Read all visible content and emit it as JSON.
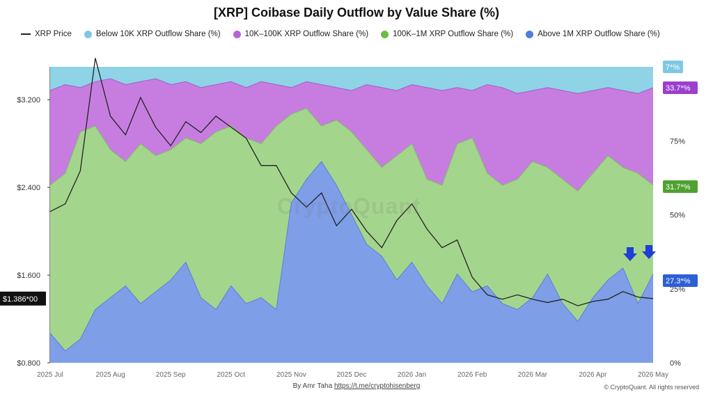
{
  "title": "[XRP] Coibase Daily Outflow by Value Share (%)",
  "legend": [
    {
      "label": "XRP Price",
      "kind": "line",
      "color": "#222222"
    },
    {
      "label": "Below 10K XRP Outflow Share (%)",
      "kind": "dot",
      "color": "#7ec8e3"
    },
    {
      "label": "10K–100K XRP Outflow Share (%)",
      "kind": "dot",
      "color": "#b565d6"
    },
    {
      "label": "100K–1M XRP Outflow Share (%)",
      "kind": "dot",
      "color": "#6bbb4a"
    },
    {
      "label": "Above 1M XRP Outflow Share (%)",
      "kind": "dot",
      "color": "#4f7ee0"
    }
  ],
  "watermark": "CryptoQuant",
  "credit": {
    "prefix": "By Amr Taha",
    "link": "https://t.me/cryptohisenberg"
  },
  "copyright": "© CryptoQuant. All rights reserved",
  "price_tag": "$1.386*00",
  "colors": {
    "below10k": "#8fd3e6",
    "k10_100": "#c77ddf",
    "k100_1m": "#a4d58d",
    "above1m": "#7f9ee8",
    "price": "#222222",
    "arrow": "#1f3fd6"
  },
  "chart_data": {
    "type": "area",
    "stacked_percent": true,
    "x_ticks": [
      "2025 Jul",
      "2025 Aug",
      "2025 Sep",
      "2025 Oct",
      "2025 Nov",
      "2025 Dec",
      "2026 Jan",
      "2026 Feb",
      "2026 Mar",
      "2026 Apr",
      "2026 May"
    ],
    "y_left": {
      "ticks": [
        "$0.800",
        "$1.600",
        "$2.400",
        "$3.200"
      ],
      "tick_values": [
        0.8,
        1.6,
        2.4,
        3.2
      ],
      "range": [
        0.8,
        3.5
      ]
    },
    "y_right": {
      "ticks": [
        "0%",
        "25%",
        "50%",
        "75%"
      ],
      "tick_values": [
        0,
        25,
        50,
        75
      ],
      "range": [
        0,
        100
      ]
    },
    "end_labels": [
      {
        "text": "7*%",
        "color": "#7ec8e3"
      },
      {
        "text": "33.7*%",
        "color": "#9b3fcf"
      },
      {
        "text": "31.7*%",
        "color": "#4fa22f"
      },
      {
        "text": "27.3*%",
        "color": "#2f5fd6"
      }
    ],
    "series_x_months": [
      0,
      0.25,
      0.5,
      0.75,
      1,
      1.25,
      1.5,
      1.75,
      2,
      2.25,
      2.5,
      2.75,
      3,
      3.25,
      3.5,
      3.75,
      4,
      4.25,
      4.5,
      4.75,
      5,
      5.25,
      5.5,
      5.75,
      6,
      6.25,
      6.5,
      6.75,
      7,
      7.25,
      7.5,
      7.75,
      8,
      8.25,
      8.5,
      8.75,
      9,
      9.25,
      9.5,
      9.75,
      10
    ],
    "series": [
      {
        "name": "Above 1M XRP Outflow Share (%)",
        "values": [
          10,
          4,
          8,
          18,
          22,
          26,
          20,
          24,
          28,
          34,
          22,
          18,
          26,
          20,
          22,
          18,
          54,
          62,
          68,
          60,
          50,
          40,
          36,
          28,
          34,
          26,
          20,
          30,
          24,
          26,
          20,
          18,
          22,
          30,
          20,
          14,
          22,
          28,
          32,
          20,
          30
        ]
      },
      {
        "name": "100K–1M XRP Outflow Share (%)",
        "values": [
          60,
          64,
          78,
          80,
          72,
          68,
          74,
          70,
          72,
          76,
          74,
          78,
          80,
          76,
          74,
          80,
          84,
          86,
          80,
          82,
          78,
          72,
          66,
          70,
          74,
          62,
          60,
          74,
          76,
          64,
          60,
          62,
          68,
          66,
          62,
          58,
          64,
          70,
          66,
          64,
          60
        ]
      },
      {
        "name": "10K–100K XRP Outflow Share (%)",
        "values": [
          92,
          94,
          93,
          95,
          96,
          94,
          95,
          96,
          94,
          95,
          93,
          94,
          95,
          93,
          95,
          94,
          93,
          95,
          94,
          93,
          92,
          94,
          93,
          92,
          94,
          93,
          92,
          93,
          92,
          94,
          93,
          91,
          92,
          93,
          92,
          91,
          92,
          93,
          92,
          91,
          93
        ]
      },
      {
        "name": "Below 10K XRP Outflow Share (%)",
        "values": [
          100,
          100,
          100,
          100,
          100,
          100,
          100,
          100,
          100,
          100,
          100,
          100,
          100,
          100,
          100,
          100,
          100,
          100,
          100,
          100,
          100,
          100,
          100,
          100,
          100,
          100,
          100,
          100,
          100,
          100,
          100,
          100,
          100,
          100,
          100,
          100,
          100,
          100,
          100,
          100,
          100
        ]
      },
      {
        "name": "XRP Price",
        "values": [
          2.18,
          2.25,
          2.55,
          3.58,
          3.05,
          2.88,
          3.22,
          2.95,
          2.78,
          3.0,
          2.9,
          3.05,
          2.95,
          2.85,
          2.6,
          2.6,
          2.35,
          2.22,
          2.35,
          2.05,
          2.2,
          2.0,
          1.85,
          2.1,
          2.25,
          2.02,
          1.85,
          1.92,
          1.58,
          1.42,
          1.38,
          1.42,
          1.38,
          1.35,
          1.38,
          1.32,
          1.36,
          1.38,
          1.45,
          1.4,
          1.386
        ]
      }
    ]
  }
}
